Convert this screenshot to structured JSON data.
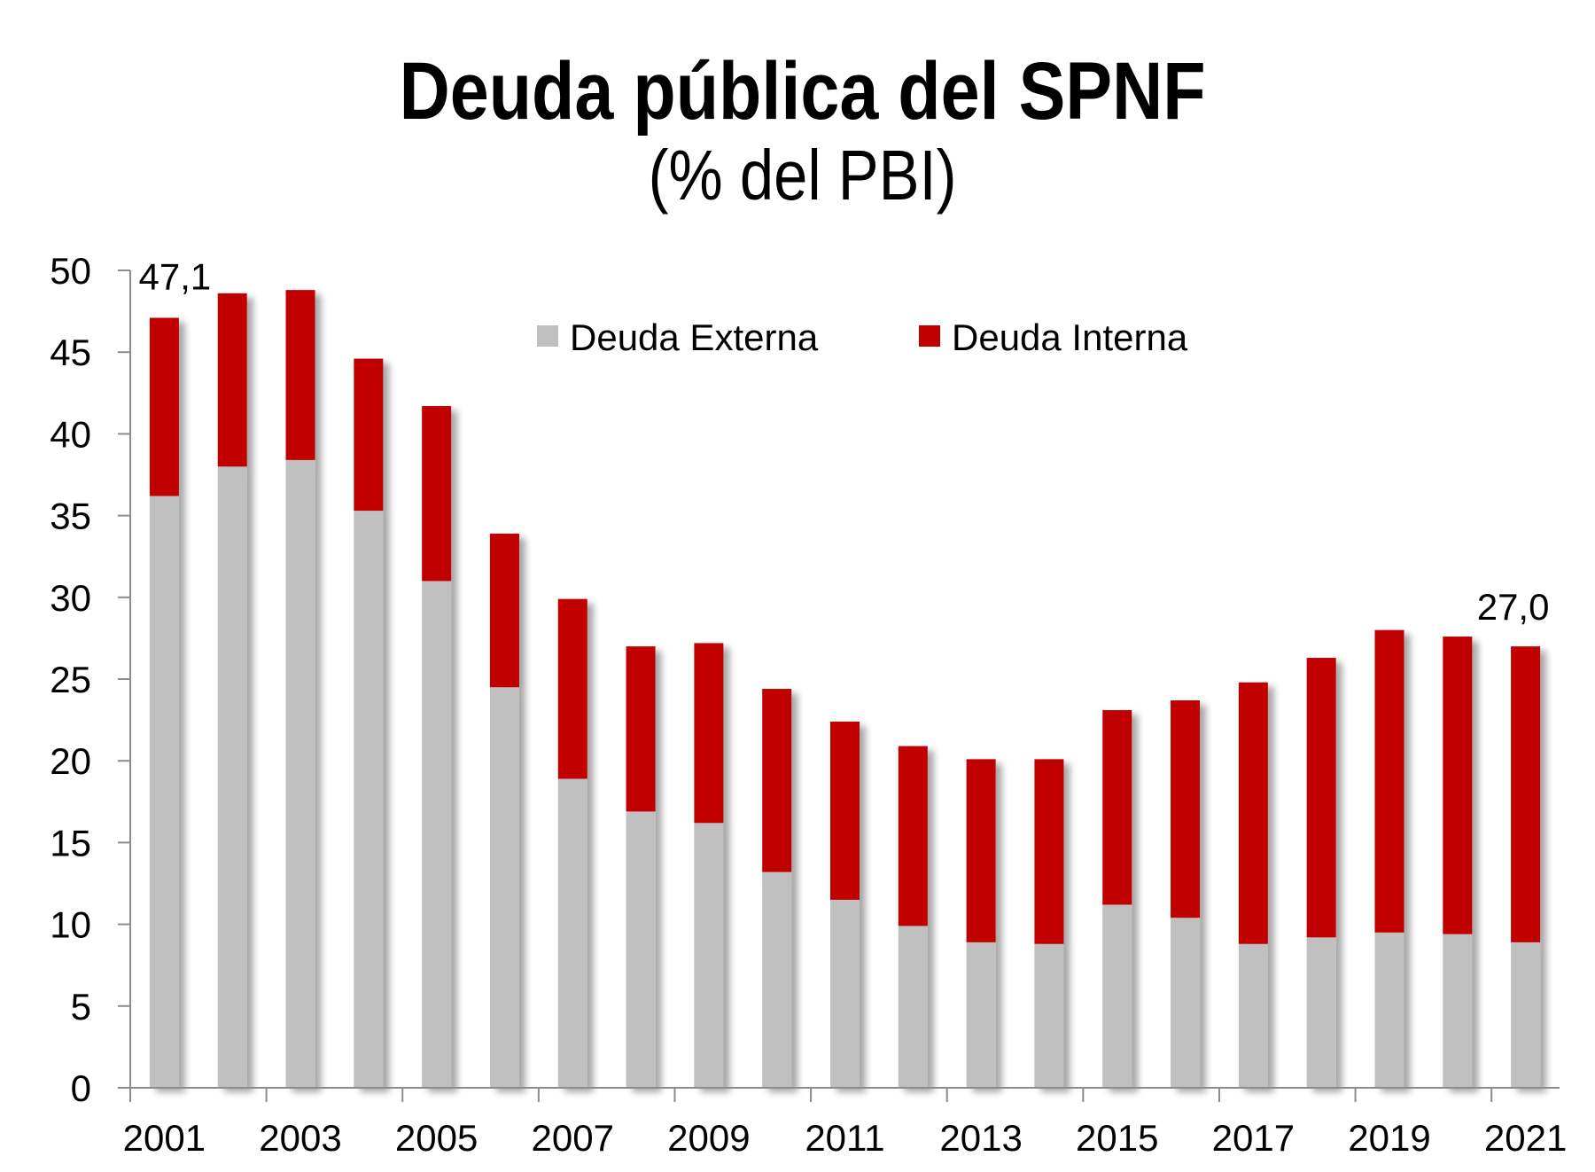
{
  "chart_data": {
    "type": "bar",
    "stacked": true,
    "title": "Deuda pública del SPNF",
    "subtitle": "(% del PBI)",
    "xlabel": "",
    "ylabel": "",
    "ylim": [
      0,
      50
    ],
    "yticks": [
      0,
      5,
      10,
      15,
      20,
      25,
      30,
      35,
      40,
      45,
      50
    ],
    "categories": [
      "2001",
      "2002",
      "2003",
      "2004",
      "2005",
      "2006",
      "2007",
      "2008",
      "2009",
      "2010",
      "2011",
      "2012",
      "2013",
      "2014",
      "2015",
      "2016",
      "2017",
      "2018",
      "2019",
      "2020",
      "2021"
    ],
    "xtick_labels": [
      "2001",
      "2003",
      "2005",
      "2007",
      "2009",
      "2011",
      "2013",
      "2015",
      "2017",
      "2019",
      "2021"
    ],
    "series": [
      {
        "name": "Deuda Externa",
        "color": "#c0c0c0",
        "values": [
          36.2,
          38.0,
          38.4,
          35.3,
          31.0,
          24.5,
          18.9,
          16.9,
          16.2,
          13.2,
          11.5,
          9.9,
          8.9,
          8.8,
          11.2,
          10.4,
          8.8,
          9.2,
          9.5,
          9.4,
          8.9
        ]
      },
      {
        "name": "Deuda Interna",
        "color": "#c00000",
        "values": [
          10.9,
          10.6,
          10.4,
          9.3,
          10.7,
          9.4,
          11.0,
          10.1,
          11.0,
          11.2,
          10.9,
          11.0,
          11.2,
          11.3,
          11.9,
          13.3,
          16.0,
          17.1,
          18.5,
          18.2,
          18.1
        ]
      }
    ],
    "annotations": [
      {
        "category": "2001",
        "text": "47,1"
      },
      {
        "category": "2021",
        "text": "27,0"
      }
    ],
    "legend": {
      "position": "top-center",
      "orientation": "horizontal"
    },
    "grid": false
  }
}
